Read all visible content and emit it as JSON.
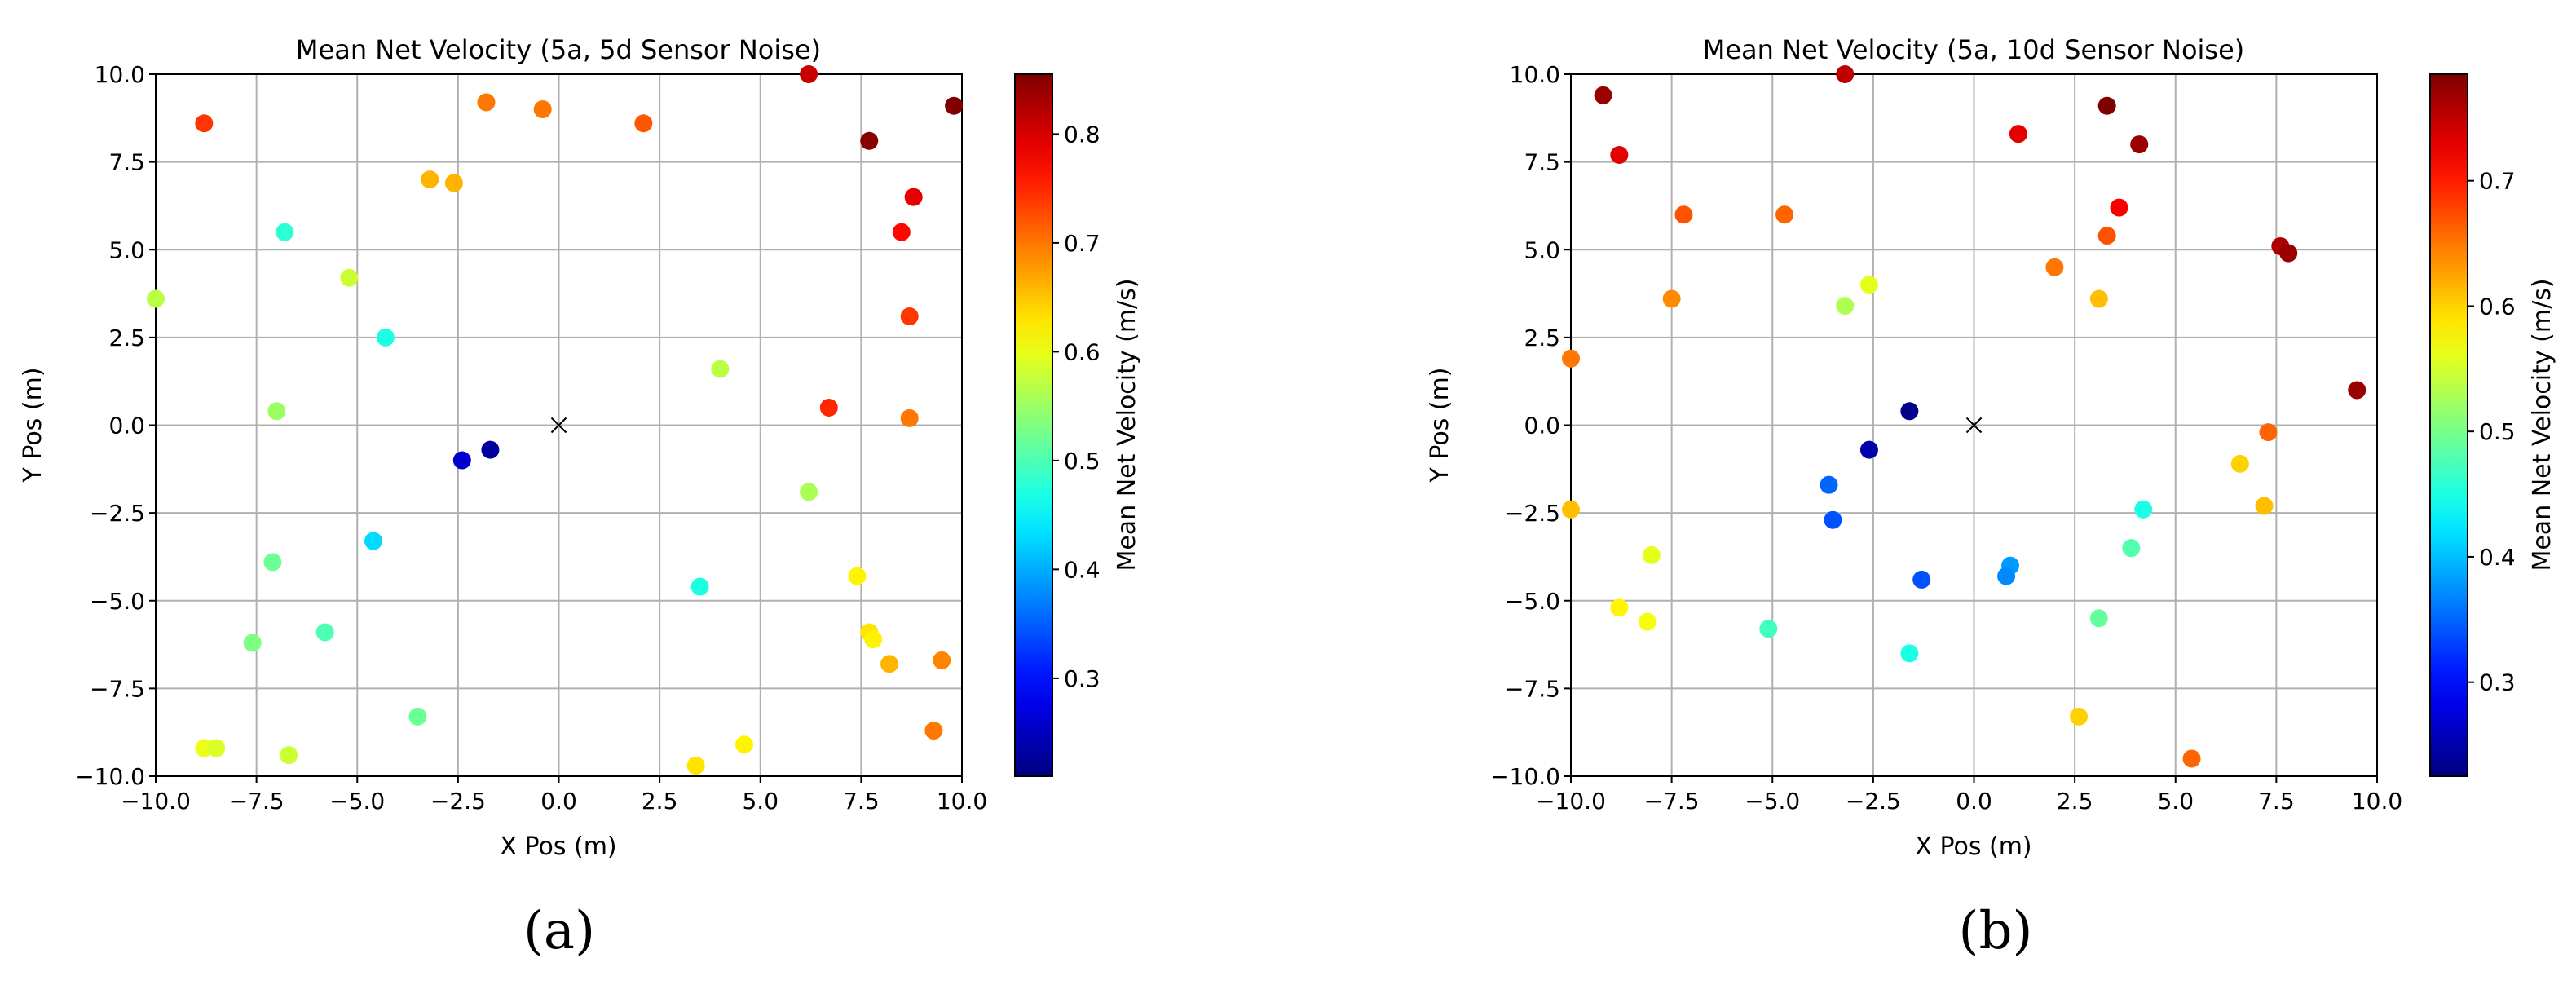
{
  "chart_data": [
    {
      "type": "scatter",
      "title": "Mean Net Velocity (5a, 5d Sensor Noise)",
      "xlabel": "X Pos (m)",
      "ylabel": "Y Pos (m)",
      "xlim": [
        -10,
        10
      ],
      "ylim": [
        -10,
        10
      ],
      "xticks": [
        -10.0,
        -7.5,
        -5.0,
        -2.5,
        0.0,
        2.5,
        5.0,
        7.5,
        10.0
      ],
      "yticks": [
        -10.0,
        -7.5,
        -5.0,
        -2.5,
        0.0,
        2.5,
        5.0,
        7.5,
        10.0
      ],
      "xtick_labels": [
        "−10.0",
        "−7.5",
        "−5.0",
        "−2.5",
        "0.0",
        "2.5",
        "5.0",
        "7.5",
        "10.0"
      ],
      "ytick_labels": [
        "−10.0",
        "−7.5",
        "−5.0",
        "−2.5",
        "0.0",
        "2.5",
        "5.0",
        "7.5",
        "10.0"
      ],
      "grid": true,
      "colormap": "jet",
      "colorbar": {
        "label": "Mean Net Velocity (m/s)",
        "range": [
          0.21,
          0.855
        ],
        "ticks": [
          0.3,
          0.4,
          0.5,
          0.6,
          0.7,
          0.8
        ],
        "tick_labels": [
          "0.3",
          "0.4",
          "0.5",
          "0.6",
          "0.7",
          "0.8"
        ]
      },
      "origin_marker": {
        "x": 0,
        "y": 0,
        "symbol": "x"
      },
      "panel_label": "(a)",
      "points": [
        {
          "x": -8.8,
          "y": 8.6,
          "v": 0.74
        },
        {
          "x": -10.0,
          "y": 3.6,
          "v": 0.57
        },
        {
          "x": -6.8,
          "y": 5.5,
          "v": 0.48
        },
        {
          "x": -5.2,
          "y": 4.2,
          "v": 0.58
        },
        {
          "x": -4.3,
          "y": 2.5,
          "v": 0.47
        },
        {
          "x": -7.0,
          "y": 0.4,
          "v": 0.55
        },
        {
          "x": -3.2,
          "y": 7.0,
          "v": 0.66
        },
        {
          "x": -2.6,
          "y": 6.9,
          "v": 0.66
        },
        {
          "x": -1.8,
          "y": 9.2,
          "v": 0.7
        },
        {
          "x": -0.4,
          "y": 9.0,
          "v": 0.7
        },
        {
          "x": 2.1,
          "y": 8.6,
          "v": 0.72
        },
        {
          "x": 6.2,
          "y": 10.0,
          "v": 0.81
        },
        {
          "x": 7.7,
          "y": 8.1,
          "v": 0.85
        },
        {
          "x": 9.8,
          "y": 9.1,
          "v": 0.88
        },
        {
          "x": 8.8,
          "y": 6.5,
          "v": 0.79
        },
        {
          "x": 8.5,
          "y": 5.5,
          "v": 0.77
        },
        {
          "x": 8.7,
          "y": 3.1,
          "v": 0.74
        },
        {
          "x": 6.7,
          "y": 0.5,
          "v": 0.75
        },
        {
          "x": 8.7,
          "y": 0.2,
          "v": 0.7
        },
        {
          "x": 4.0,
          "y": 1.6,
          "v": 0.57
        },
        {
          "x": -1.7,
          "y": -0.7,
          "v": 0.23
        },
        {
          "x": -2.4,
          "y": -1.0,
          "v": 0.26
        },
        {
          "x": -4.6,
          "y": -3.3,
          "v": 0.43
        },
        {
          "x": -7.1,
          "y": -3.9,
          "v": 0.52
        },
        {
          "x": -7.6,
          "y": -6.2,
          "v": 0.53
        },
        {
          "x": -5.8,
          "y": -5.9,
          "v": 0.5
        },
        {
          "x": -3.5,
          "y": -8.3,
          "v": 0.52
        },
        {
          "x": -8.8,
          "y": -9.2,
          "v": 0.6
        },
        {
          "x": -8.5,
          "y": -9.2,
          "v": 0.59
        },
        {
          "x": -6.7,
          "y": -9.4,
          "v": 0.58
        },
        {
          "x": 3.5,
          "y": -4.6,
          "v": 0.47
        },
        {
          "x": 6.2,
          "y": -1.9,
          "v": 0.56
        },
        {
          "x": 7.4,
          "y": -4.3,
          "v": 0.62
        },
        {
          "x": 7.7,
          "y": -5.9,
          "v": 0.63
        },
        {
          "x": 7.8,
          "y": -6.1,
          "v": 0.62
        },
        {
          "x": 8.2,
          "y": -6.8,
          "v": 0.66
        },
        {
          "x": 9.5,
          "y": -6.7,
          "v": 0.69
        },
        {
          "x": 9.3,
          "y": -8.7,
          "v": 0.7
        },
        {
          "x": 4.6,
          "y": -9.1,
          "v": 0.62
        },
        {
          "x": 3.4,
          "y": -9.7,
          "v": 0.63
        }
      ]
    },
    {
      "type": "scatter",
      "title": "Mean Net Velocity (5a, 10d Sensor Noise)",
      "xlabel": "X Pos (m)",
      "ylabel": "Y Pos (m)",
      "xlim": [
        -10,
        10
      ],
      "ylim": [
        -10,
        10
      ],
      "xticks": [
        -10.0,
        -7.5,
        -5.0,
        -2.5,
        0.0,
        2.5,
        5.0,
        7.5,
        10.0
      ],
      "yticks": [
        -10.0,
        -7.5,
        -5.0,
        -2.5,
        0.0,
        2.5,
        5.0,
        7.5,
        10.0
      ],
      "xtick_labels": [
        "−10.0",
        "−7.5",
        "−5.0",
        "−2.5",
        "0.0",
        "2.5",
        "5.0",
        "7.5",
        "10.0"
      ],
      "ytick_labels": [
        "−10.0",
        "−7.5",
        "−5.0",
        "−2.5",
        "0.0",
        "2.5",
        "5.0",
        "7.5",
        "10.0"
      ],
      "grid": true,
      "colormap": "jet",
      "colorbar": {
        "label": "Mean Net Velocity (m/s)",
        "range": [
          0.225,
          0.785
        ],
        "ticks": [
          0.3,
          0.4,
          0.5,
          0.6,
          0.7
        ],
        "tick_labels": [
          "0.3",
          "0.4",
          "0.5",
          "0.6",
          "0.7"
        ]
      },
      "origin_marker": {
        "x": 0,
        "y": 0,
        "symbol": "x"
      },
      "panel_label": "(b)",
      "points": [
        {
          "x": -9.2,
          "y": 9.4,
          "v": 0.77
        },
        {
          "x": -8.8,
          "y": 7.7,
          "v": 0.73
        },
        {
          "x": -3.2,
          "y": 10.0,
          "v": 0.75
        },
        {
          "x": 3.3,
          "y": 9.1,
          "v": 0.8
        },
        {
          "x": 1.1,
          "y": 8.3,
          "v": 0.73
        },
        {
          "x": 4.1,
          "y": 8.0,
          "v": 0.77
        },
        {
          "x": -7.2,
          "y": 6.0,
          "v": 0.67
        },
        {
          "x": -4.7,
          "y": 6.0,
          "v": 0.66
        },
        {
          "x": 3.6,
          "y": 6.2,
          "v": 0.72
        },
        {
          "x": 3.3,
          "y": 5.4,
          "v": 0.67
        },
        {
          "x": 7.6,
          "y": 5.1,
          "v": 0.76
        },
        {
          "x": 7.8,
          "y": 4.9,
          "v": 0.77
        },
        {
          "x": 2.0,
          "y": 4.5,
          "v": 0.65
        },
        {
          "x": -7.5,
          "y": 3.6,
          "v": 0.64
        },
        {
          "x": -3.2,
          "y": 3.4,
          "v": 0.53
        },
        {
          "x": -2.6,
          "y": 4.0,
          "v": 0.56
        },
        {
          "x": 3.1,
          "y": 3.6,
          "v": 0.61
        },
        {
          "x": -10.0,
          "y": 1.9,
          "v": 0.65
        },
        {
          "x": 9.5,
          "y": 1.0,
          "v": 0.77
        },
        {
          "x": -1.6,
          "y": 0.4,
          "v": 0.23
        },
        {
          "x": -2.6,
          "y": -0.7,
          "v": 0.25
        },
        {
          "x": -3.6,
          "y": -1.7,
          "v": 0.35
        },
        {
          "x": -3.5,
          "y": -2.7,
          "v": 0.34
        },
        {
          "x": -1.3,
          "y": -4.4,
          "v": 0.34
        },
        {
          "x": 0.9,
          "y": -4.0,
          "v": 0.38
        },
        {
          "x": 0.8,
          "y": -4.3,
          "v": 0.37
        },
        {
          "x": -10.0,
          "y": -2.4,
          "v": 0.61
        },
        {
          "x": -8.0,
          "y": -3.7,
          "v": 0.56
        },
        {
          "x": -8.8,
          "y": -5.2,
          "v": 0.58
        },
        {
          "x": -8.1,
          "y": -5.6,
          "v": 0.57
        },
        {
          "x": -5.1,
          "y": -5.8,
          "v": 0.47
        },
        {
          "x": -1.6,
          "y": -6.5,
          "v": 0.45
        },
        {
          "x": 3.1,
          "y": -5.5,
          "v": 0.49
        },
        {
          "x": 3.9,
          "y": -3.5,
          "v": 0.48
        },
        {
          "x": 4.2,
          "y": -2.4,
          "v": 0.45
        },
        {
          "x": 6.6,
          "y": -1.1,
          "v": 0.6
        },
        {
          "x": 7.2,
          "y": -2.3,
          "v": 0.61
        },
        {
          "x": 7.3,
          "y": -0.2,
          "v": 0.66
        },
        {
          "x": 2.6,
          "y": -8.3,
          "v": 0.6
        },
        {
          "x": 5.4,
          "y": -9.5,
          "v": 0.66
        }
      ]
    }
  ]
}
